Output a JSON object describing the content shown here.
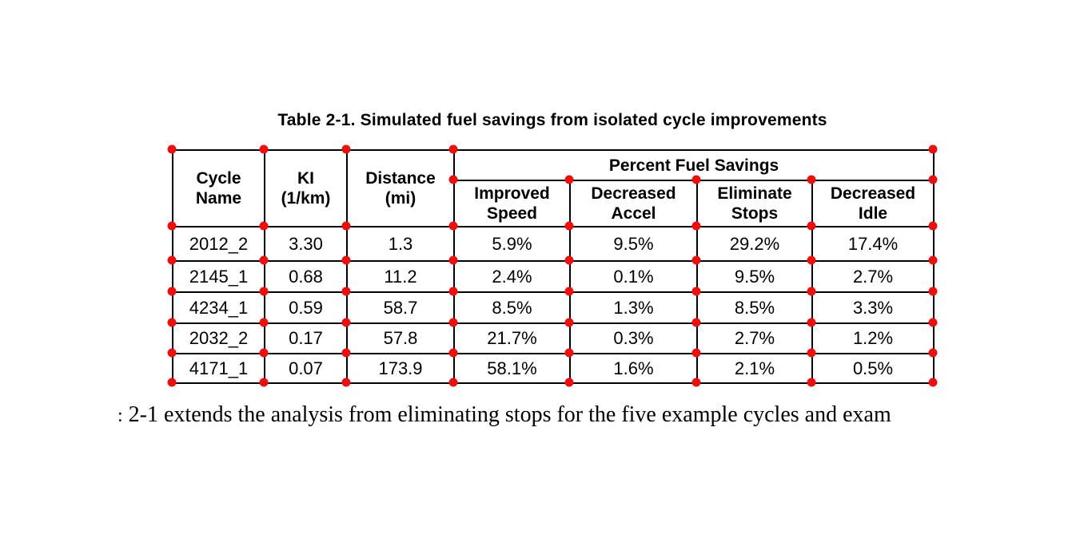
{
  "caption": "Table 2-1. Simulated fuel savings from isolated cycle improvements",
  "table": {
    "header": {
      "cycle_name": "Cycle\nName",
      "ki": "KI\n(1/km)",
      "distance": "Distance\n(mi)",
      "group": "Percent Fuel Savings",
      "sub": [
        "Improved\nSpeed",
        "Decreased\nAccel",
        "Eliminate\nStops",
        "Decreased\nIdle"
      ]
    },
    "rows": [
      [
        "2012_2",
        "3.30",
        "1.3",
        "5.9%",
        "9.5%",
        "29.2%",
        "17.4%"
      ],
      [
        "2145_1",
        "0.68",
        "11.2",
        "2.4%",
        "0.1%",
        "9.5%",
        "2.7%"
      ],
      [
        "4234_1",
        "0.59",
        "58.7",
        "8.5%",
        "1.3%",
        "8.5%",
        "3.3%"
      ],
      [
        "2032_2",
        "0.17",
        "57.8",
        "21.7%",
        "0.3%",
        "2.7%",
        "1.2%"
      ],
      [
        "4171_1",
        "0.07",
        "173.9",
        "58.1%",
        "1.6%",
        "2.1%",
        "0.5%"
      ]
    ]
  },
  "paragraph": {
    "fragment": ":",
    "text": "2-1 extends the analysis from eliminating stops for the five example cycles and exam"
  },
  "colors": {
    "marker": "#f20d0d",
    "grid": "#000000",
    "background": "#ffffff"
  }
}
